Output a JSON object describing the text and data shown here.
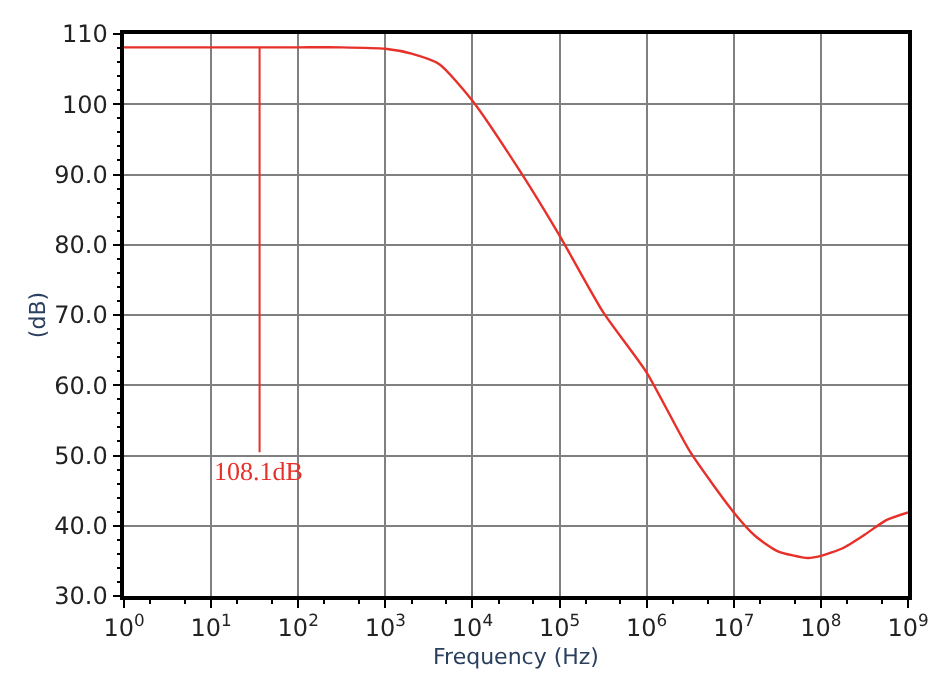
{
  "chart_data": {
    "type": "line",
    "xlabel": "Frequency (Hz)",
    "ylabel": "(dB)",
    "x": [
      1,
      10,
      100,
      316,
      1000,
      1995,
      4169,
      10000,
      35481,
      100000,
      316228,
      1000000,
      3162278,
      10000000,
      17782794,
      31622777,
      70794578,
      100000000,
      177827941,
      316227766,
      562341325,
      1000000000
    ],
    "series": [
      {
        "color": "#e8302a",
        "values": [
          108.1,
          108.1,
          108.1,
          108.1,
          107.9,
          107.2,
          105.7,
          100.5,
          90.4,
          81.3,
          70.4,
          61.8,
          50.5,
          41.9,
          38.5,
          36.4,
          35.4,
          35.7,
          36.8,
          38.7,
          40.8,
          41.9
        ]
      }
    ],
    "log": "x",
    "xlim": [
      1,
      1000000000
    ],
    "xticks": [
      {
        "value": 1,
        "label": "10$^{0}$"
      },
      {
        "value": 10,
        "label": "10$^{1}$"
      },
      {
        "value": 100,
        "label": "10$^{2}$"
      },
      {
        "value": 1000,
        "label": "10$^{3}$"
      },
      {
        "value": 10000,
        "label": "10$^{4}$"
      },
      {
        "value": 100000,
        "label": "10$^{5}$"
      },
      {
        "value": 1000000,
        "label": "10$^{6}$"
      },
      {
        "value": 10000000,
        "label": "10$^{7}$"
      },
      {
        "value": 100000000,
        "label": "10$^{8}$"
      },
      {
        "value": 1000000000,
        "label": "10$^{9}$"
      }
    ],
    "ylim": [
      30,
      110
    ],
    "yticks": [
      {
        "value": 30,
        "label": "30.0"
      },
      {
        "value": 40,
        "label": "40.0"
      },
      {
        "value": 50,
        "label": "50.0"
      },
      {
        "value": 60,
        "label": "60.0"
      },
      {
        "value": 70,
        "label": "70.0"
      },
      {
        "value": 80,
        "label": "80.0"
      },
      {
        "value": 90,
        "label": "90.0"
      },
      100,
      110
    ],
    "annotations": [
      {
        "text": "108.1dB",
        "x": 36,
        "y": 108.1
      }
    ],
    "grid": true,
    "legend": false,
    "marker": "none",
    "line_style": "solid"
  }
}
